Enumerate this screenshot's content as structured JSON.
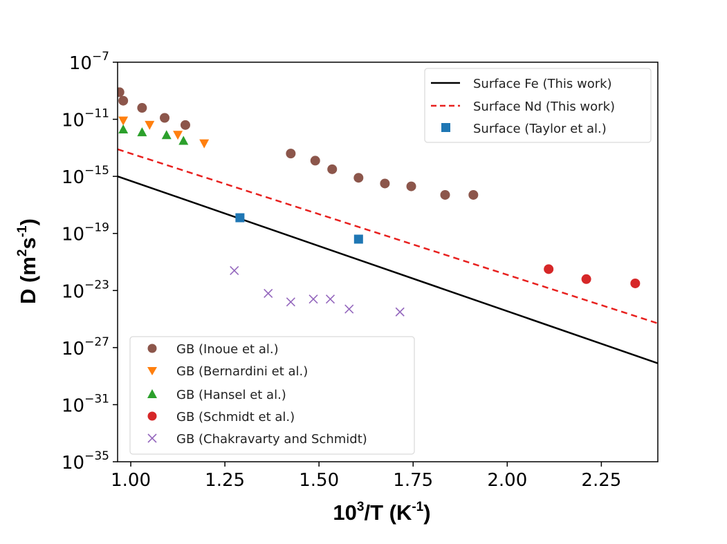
{
  "chart_data": {
    "type": "scatter",
    "xlabel": {
      "base": "10",
      "exp": "3",
      "rest1": "/T (K",
      "exp2": "-1",
      "rest2": ")"
    },
    "ylabel": {
      "base": "D (m",
      "exp": "2",
      "mid": "s",
      "exp2": "-1",
      "rest": ")"
    },
    "xlim": [
      0.965,
      2.4
    ],
    "ylim_log10": [
      -35,
      -7
    ],
    "y_scale": "log",
    "x_ticks": [
      {
        "value": 1.0,
        "label": "1.00"
      },
      {
        "value": 1.25,
        "label": "1.25"
      },
      {
        "value": 1.5,
        "label": "1.50"
      },
      {
        "value": 1.75,
        "label": "1.75"
      },
      {
        "value": 2.0,
        "label": "2.00"
      },
      {
        "value": 2.25,
        "label": "2.25"
      }
    ],
    "y_ticks": [
      {
        "exp": -7,
        "base": "10",
        "sup": "−7"
      },
      {
        "exp": -11,
        "base": "10",
        "sup": "−11"
      },
      {
        "exp": -15,
        "base": "10",
        "sup": "−15"
      },
      {
        "exp": -19,
        "base": "10",
        "sup": "−19"
      },
      {
        "exp": -23,
        "base": "10",
        "sup": "−23"
      },
      {
        "exp": -27,
        "base": "10",
        "sup": "−27"
      },
      {
        "exp": -31,
        "base": "10",
        "sup": "−31"
      },
      {
        "exp": -35,
        "base": "10",
        "sup": "−35"
      }
    ],
    "grid": false,
    "lines": [
      {
        "name": "Surface Fe (This work)",
        "color": "#000000",
        "dash": "solid",
        "x": [
          0.965,
          2.4
        ],
        "log10_y": [
          -15.0,
          -28.1
        ]
      },
      {
        "name": "Surface Nd (This work)",
        "color": "#e8211f",
        "dash": "dashed",
        "x": [
          0.965,
          2.4
        ],
        "log10_y": [
          -13.1,
          -25.3
        ]
      }
    ],
    "series": [
      {
        "name": "Surface (Taylor et al.)",
        "marker": "square",
        "color": "#1f77b4",
        "points": [
          [
            1.29,
            -17.9
          ],
          [
            1.605,
            -19.4
          ]
        ]
      },
      {
        "name": "GB (Inoue et al.)",
        "marker": "circle",
        "color": "#8c564b",
        "points": [
          [
            0.97,
            -9.1
          ],
          [
            0.98,
            -9.7
          ],
          [
            1.03,
            -10.2
          ],
          [
            1.09,
            -10.9
          ],
          [
            1.145,
            -11.4
          ],
          [
            1.425,
            -13.4
          ],
          [
            1.49,
            -13.9
          ],
          [
            1.535,
            -14.5
          ],
          [
            1.605,
            -15.1
          ],
          [
            1.675,
            -15.5
          ],
          [
            1.745,
            -15.7
          ],
          [
            1.835,
            -16.3
          ],
          [
            1.91,
            -16.3
          ]
        ]
      },
      {
        "name": "GB (Bernardini et al.)",
        "marker": "triangle-down",
        "color": "#ff7f0e",
        "points": [
          [
            0.98,
            -11.1
          ],
          [
            1.05,
            -11.4
          ],
          [
            1.125,
            -12.1
          ],
          [
            1.195,
            -12.7
          ]
        ]
      },
      {
        "name": "GB (Hansel et al.)",
        "marker": "triangle-up",
        "color": "#2ca02c",
        "points": [
          [
            0.98,
            -11.7
          ],
          [
            1.03,
            -11.9
          ],
          [
            1.095,
            -12.1
          ],
          [
            1.14,
            -12.5
          ]
        ]
      },
      {
        "name": "GB (Schmidt et al.)",
        "marker": "circle",
        "color": "#d62728",
        "points": [
          [
            2.11,
            -21.5
          ],
          [
            2.21,
            -22.2
          ],
          [
            2.34,
            -22.5
          ]
        ]
      },
      {
        "name": "GB (Chakravarty and Schmidt)",
        "marker": "x",
        "color": "#9467bd",
        "points": [
          [
            1.275,
            -21.6
          ],
          [
            1.365,
            -23.2
          ],
          [
            1.425,
            -23.8
          ],
          [
            1.485,
            -23.6
          ],
          [
            1.53,
            -23.6
          ],
          [
            1.58,
            -24.3
          ],
          [
            1.715,
            -24.5
          ]
        ]
      }
    ],
    "legend_top": {
      "placement": "top-right",
      "entries": [
        "Surface Fe (This work)",
        "Surface Nd (This work)",
        "Surface (Taylor et al.)"
      ]
    },
    "legend_bottom": {
      "placement": "bottom-left",
      "entries": [
        "GB (Inoue et al.)",
        "GB (Bernardini et al.)",
        "GB (Hansel et al.)",
        "GB (Schmidt et al.)",
        "GB (Chakravarty and Schmidt)"
      ]
    }
  }
}
